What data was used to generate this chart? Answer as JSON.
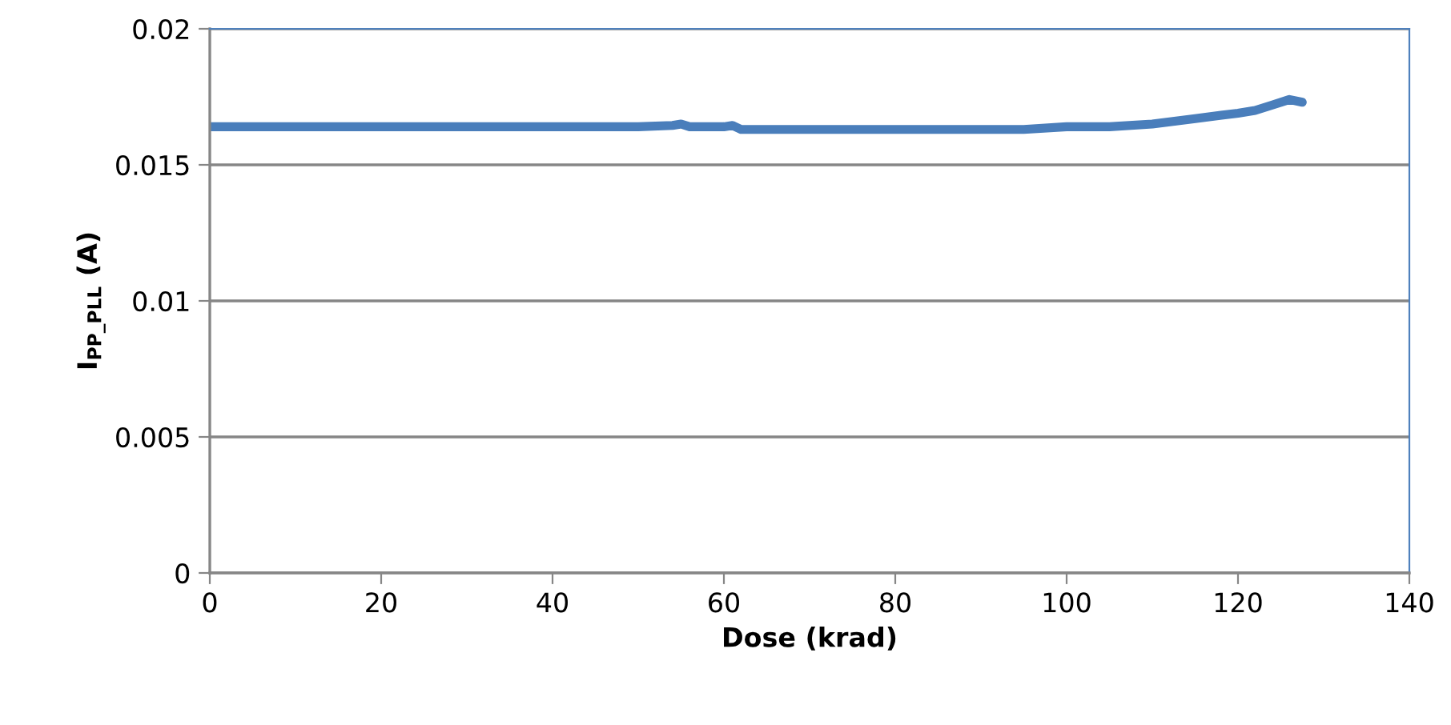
{
  "chart_data": {
    "type": "line",
    "xlabel": "Dose (krad)",
    "ylabel": "I$_{PP_PLL}$ (A)",
    "series": [
      {
        "color": "#4a7ebb",
        "x": [
          0,
          5,
          10,
          15,
          20,
          25,
          30,
          35,
          40,
          45,
          50,
          54,
          55,
          56,
          58,
          60,
          61,
          62,
          65,
          70,
          75,
          80,
          85,
          90,
          95,
          100,
          105,
          110,
          115,
          120,
          122,
          124,
          126,
          127.5
        ],
        "values": [
          0.0164,
          0.0164,
          0.0164,
          0.0164,
          0.0164,
          0.0164,
          0.0164,
          0.0164,
          0.0164,
          0.0164,
          0.0164,
          0.01645,
          0.0165,
          0.0164,
          0.0164,
          0.0164,
          0.01645,
          0.0163,
          0.0163,
          0.0163,
          0.0163,
          0.0163,
          0.0163,
          0.0163,
          0.0163,
          0.0164,
          0.0164,
          0.0165,
          0.0167,
          0.0169,
          0.017,
          0.0172,
          0.0174,
          0.0173
        ]
      }
    ],
    "xlim": [
      0,
      140
    ],
    "xticks": [
      0,
      20,
      40,
      60,
      80,
      100,
      120,
      140
    ],
    "ylim": [
      0,
      0.02
    ],
    "yticks": [
      0,
      0.005,
      0.01,
      0.015,
      0.02
    ],
    "grid": "y",
    "marker": "none",
    "line_style": "solid"
  }
}
